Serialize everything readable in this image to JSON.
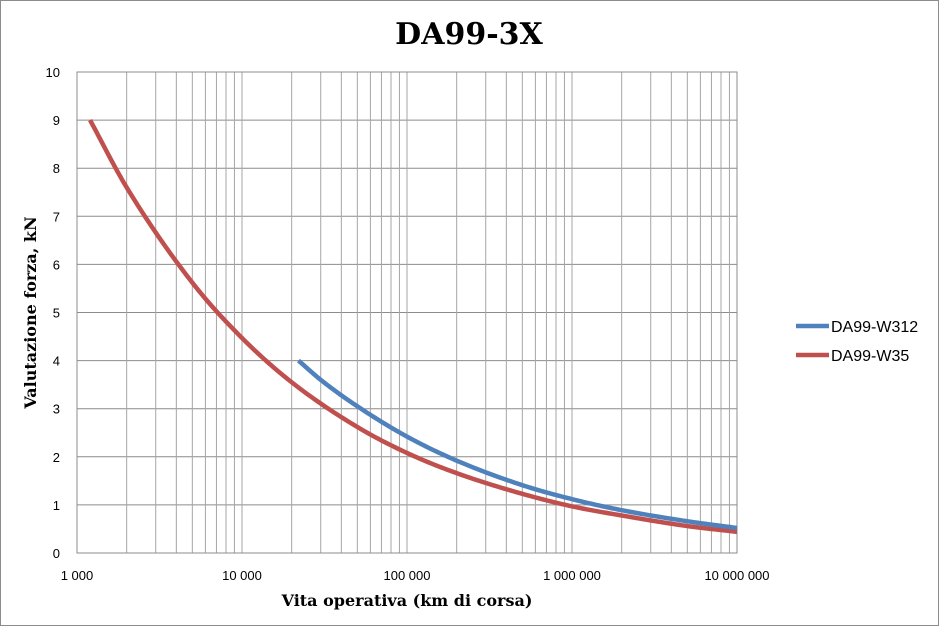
{
  "chart_data": {
    "type": "line",
    "title": "DA99-3X",
    "xlabel": "Vita operativa (km di corsa)",
    "ylabel": "Valutazione forza, kN",
    "xscale": "log",
    "xlim": [
      1000,
      10000000
    ],
    "ylim": [
      0,
      10
    ],
    "x_ticks": [
      1000,
      10000,
      100000,
      1000000,
      10000000
    ],
    "x_tick_labels": [
      "1 000",
      "10 000",
      "100 000",
      "1 000 000",
      "10 000 000"
    ],
    "y_ticks": [
      0,
      1,
      2,
      3,
      4,
      5,
      6,
      7,
      8,
      9,
      10
    ],
    "y_tick_labels": [
      "0",
      "1",
      "2",
      "3",
      "4",
      "5",
      "6",
      "7",
      "8",
      "9",
      "10"
    ],
    "grid": true,
    "legend_position": "right",
    "series": [
      {
        "name": "DA99-W312",
        "color": "#4f81bd",
        "x": [
          22000,
          30000,
          50000,
          100000,
          200000,
          500000,
          1000000,
          2000000,
          5000000,
          10000000
        ],
        "y": [
          4.0,
          3.6,
          3.05,
          2.42,
          1.92,
          1.41,
          1.12,
          0.89,
          0.66,
          0.52
        ]
      },
      {
        "name": "DA99-W35",
        "color": "#c0504d",
        "x": [
          1200,
          2000,
          5000,
          10000,
          20000,
          50000,
          100000,
          200000,
          500000,
          1000000,
          2000000,
          5000000,
          10000000
        ],
        "y": [
          9.0,
          7.6,
          5.62,
          4.47,
          3.55,
          2.62,
          2.08,
          1.66,
          1.23,
          0.97,
          0.78,
          0.56,
          0.44
        ]
      }
    ]
  }
}
